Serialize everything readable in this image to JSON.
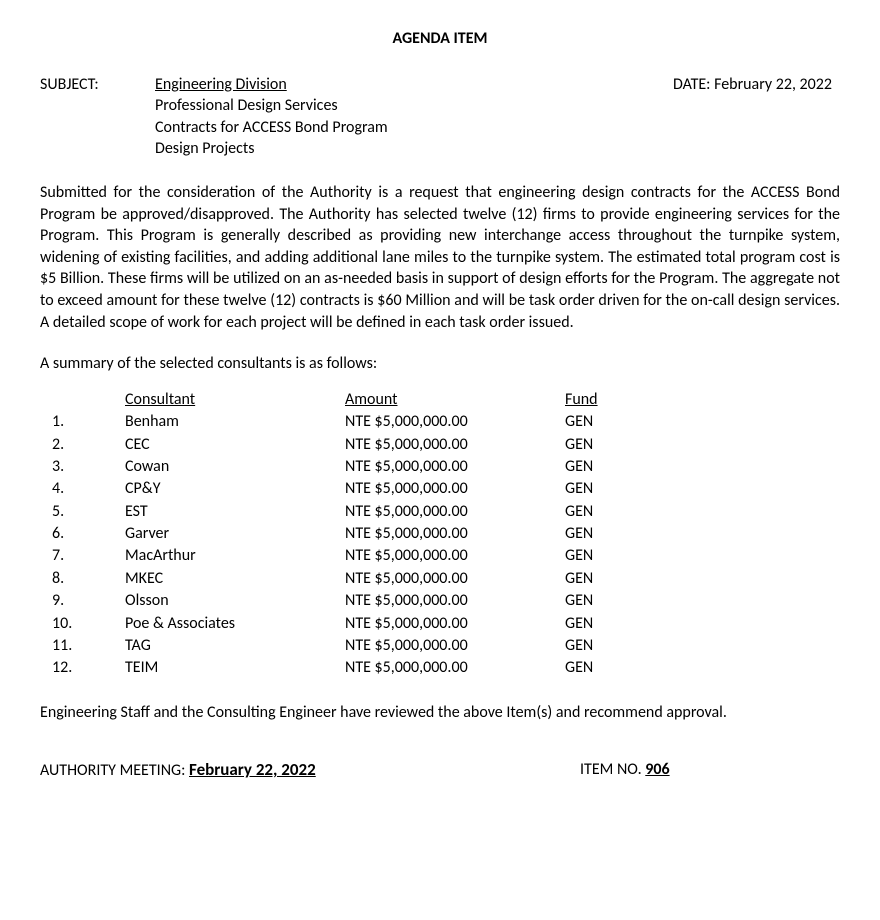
{
  "title": "AGENDA ITEM",
  "header": {
    "subject_label": "SUBJECT:",
    "subject_line1": "Engineering Division",
    "subject_line2": "Professional Design Services",
    "subject_line3": "Contracts for ACCESS Bond Program",
    "subject_line4": "Design Projects",
    "date_label": "DATE: ",
    "date_value": "February 22, 2022"
  },
  "body_paragraph": "Submitted for the consideration of the Authority is a request that engineering design contracts for the ACCESS Bond Program be approved/disapproved.  The Authority has selected twelve (12) firms to provide engineering services for the Program. This Program is generally described as providing new interchange access throughout the turnpike system, widening of existing facilities, and adding additional lane miles to the turnpike system.  The estimated total program cost is $5 Billion.  These firms will be utilized on an as-needed basis in support of design efforts for the Program. The aggregate not to exceed amount for these twelve (12) contracts is $60 Million and will be task order driven for the on-call design services. A detailed scope of work for each project will be defined in each task order issued.",
  "summary_intro": "A summary of the selected consultants is as follows:",
  "table": {
    "headers": {
      "consultant": "Consultant",
      "amount": "Amount",
      "fund": "Fund"
    },
    "rows": [
      {
        "n": "1.",
        "consultant": "Benham",
        "amount": "NTE $5,000,000.00",
        "fund": "GEN"
      },
      {
        "n": "2.",
        "consultant": "CEC",
        "amount": "NTE $5,000,000.00",
        "fund": "GEN"
      },
      {
        "n": "3.",
        "consultant": "Cowan",
        "amount": "NTE $5,000,000.00",
        "fund": "GEN"
      },
      {
        "n": "4.",
        "consultant": "CP&Y",
        "amount": "NTE $5,000,000.00",
        "fund": "GEN"
      },
      {
        "n": "5.",
        "consultant": "EST",
        "amount": "NTE $5,000,000.00",
        "fund": "GEN"
      },
      {
        "n": "6.",
        "consultant": "Garver",
        "amount": "NTE $5,000,000.00",
        "fund": "GEN"
      },
      {
        "n": "7.",
        "consultant": "MacArthur",
        "amount": "NTE $5,000,000.00",
        "fund": "GEN"
      },
      {
        "n": "8.",
        "consultant": "MKEC",
        "amount": "NTE $5,000,000.00",
        "fund": "GEN"
      },
      {
        "n": "9.",
        "consultant": "Olsson",
        "amount": "NTE $5,000,000.00",
        "fund": "GEN"
      },
      {
        "n": "10.",
        "consultant": "Poe & Associates",
        "amount": "NTE $5,000,000.00",
        "fund": "GEN"
      },
      {
        "n": "11.",
        "consultant": "TAG",
        "amount": "NTE $5,000,000.00",
        "fund": "GEN"
      },
      {
        "n": "12.",
        "consultant": "TEIM",
        "amount": "NTE $5,000,000.00",
        "fund": "GEN"
      }
    ]
  },
  "recommendation": "Engineering Staff and the Consulting Engineer have reviewed the above Item(s) and recommend approval.",
  "footer": {
    "meeting_label": "AUTHORITY MEETING:  ",
    "meeting_date": "February 22, 2022",
    "item_label": "ITEM NO.  ",
    "item_value": "906"
  }
}
